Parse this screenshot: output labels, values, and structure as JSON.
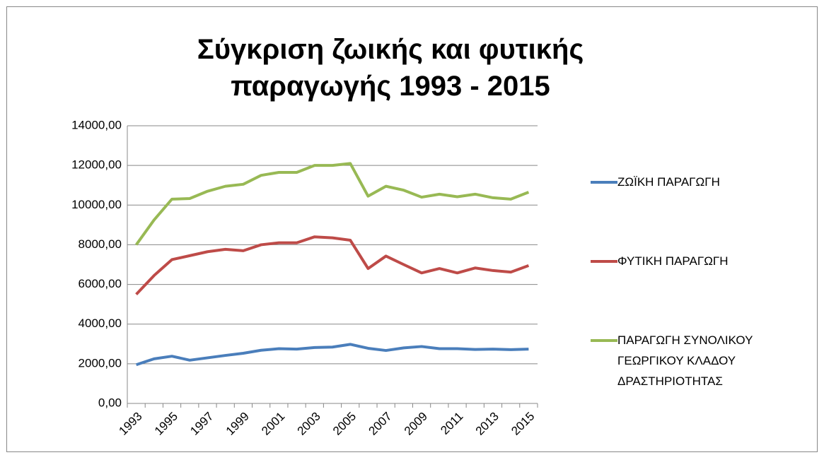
{
  "chart_data": {
    "type": "line",
    "title": "Σύγκριση ζωικής και φυτικής παραγωγής 1993 - 2015",
    "categories": [
      "1993",
      null,
      "1995",
      null,
      "1997",
      null,
      "1999",
      null,
      "2001",
      null,
      "2003",
      null,
      "2005",
      null,
      "2007",
      null,
      "2009",
      null,
      "2011",
      null,
      "2013",
      null,
      "2015"
    ],
    "series": [
      {
        "name": "ΖΩΪΚΗ ΠΑΡΑΓΩΓΗ",
        "color": "#4a7ebb",
        "values": [
          1950,
          2250,
          2380,
          2180,
          2300,
          2420,
          2530,
          2680,
          2760,
          2740,
          2820,
          2840,
          2980,
          2780,
          2670,
          2800,
          2870,
          2760,
          2760,
          2720,
          2740,
          2710,
          2740
        ]
      },
      {
        "name": "ΦΥΤΙΚΗ ΠΑΡΑΓΩΓΗ",
        "color": "#be4b48",
        "values": [
          5500,
          6450,
          7250,
          7450,
          7650,
          7770,
          7700,
          8000,
          8100,
          8100,
          8400,
          8350,
          8230,
          6800,
          7430,
          7000,
          6580,
          6800,
          6580,
          6830,
          6700,
          6620,
          6950
        ]
      },
      {
        "name": "ΠΑΡΑΓΩΓΗ ΣΥΝΟΛΙΚΟΥ ΓΕΩΡΓΙΚΟΥ ΚΛΑΔΟΥ ΔΡΑΣΤΗΡΙΟΤΗΤΑΣ",
        "color": "#98b954",
        "values": [
          8000,
          9250,
          10300,
          10330,
          10700,
          10950,
          11050,
          11500,
          11650,
          11650,
          12000,
          12000,
          12100,
          10450,
          10950,
          10750,
          10400,
          10550,
          10420,
          10550,
          10370,
          10300,
          10650
        ]
      }
    ],
    "ylim": [
      0,
      14000
    ],
    "yticks": [
      {
        "value": 0,
        "label": "0,00"
      },
      {
        "value": 2000,
        "label": "2000,00"
      },
      {
        "value": 4000,
        "label": "4000,00"
      },
      {
        "value": 6000,
        "label": "6000,00"
      },
      {
        "value": 8000,
        "label": "8000,00"
      },
      {
        "value": 10000,
        "label": "10000,00"
      },
      {
        "value": 12000,
        "label": "12000,00"
      },
      {
        "value": 14000,
        "label": "14000,00"
      }
    ],
    "grid": true,
    "legend": "right"
  }
}
